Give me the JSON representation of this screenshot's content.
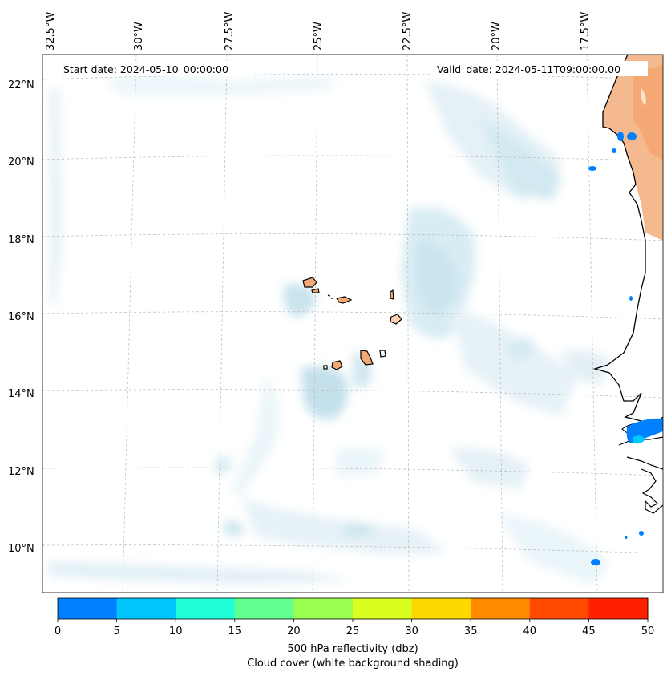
{
  "header": {
    "start_date": "Start date: 2024-05-10_00:00:00",
    "valid_date": "Valid_date: 2024-05-11T09:00:00.00"
  },
  "map": {
    "longitude_labels": [
      "32.5°W",
      "30°W",
      "27.5°W",
      "25°W",
      "22.5°W",
      "20°W",
      "17.5°W"
    ],
    "latitude_labels": [
      "22°N",
      "20°N",
      "18°N",
      "16°N",
      "14°N",
      "12°N",
      "10°N"
    ],
    "gridlines": true
  },
  "colorbar": {
    "label_line1": "500 hPa reflectivity (dbz)",
    "label_line2": "Cloud cover (white background shading)",
    "ticks": [
      "0",
      "5",
      "10",
      "15",
      "20",
      "25",
      "30",
      "35",
      "40",
      "45",
      "50"
    ],
    "colors": [
      "#0080ff",
      "#00c8ff",
      "#20ffd8",
      "#60ff90",
      "#98ff50",
      "#d8ff20",
      "#ffd800",
      "#ff8a00",
      "#ff4a00",
      "#ff2000"
    ]
  }
}
